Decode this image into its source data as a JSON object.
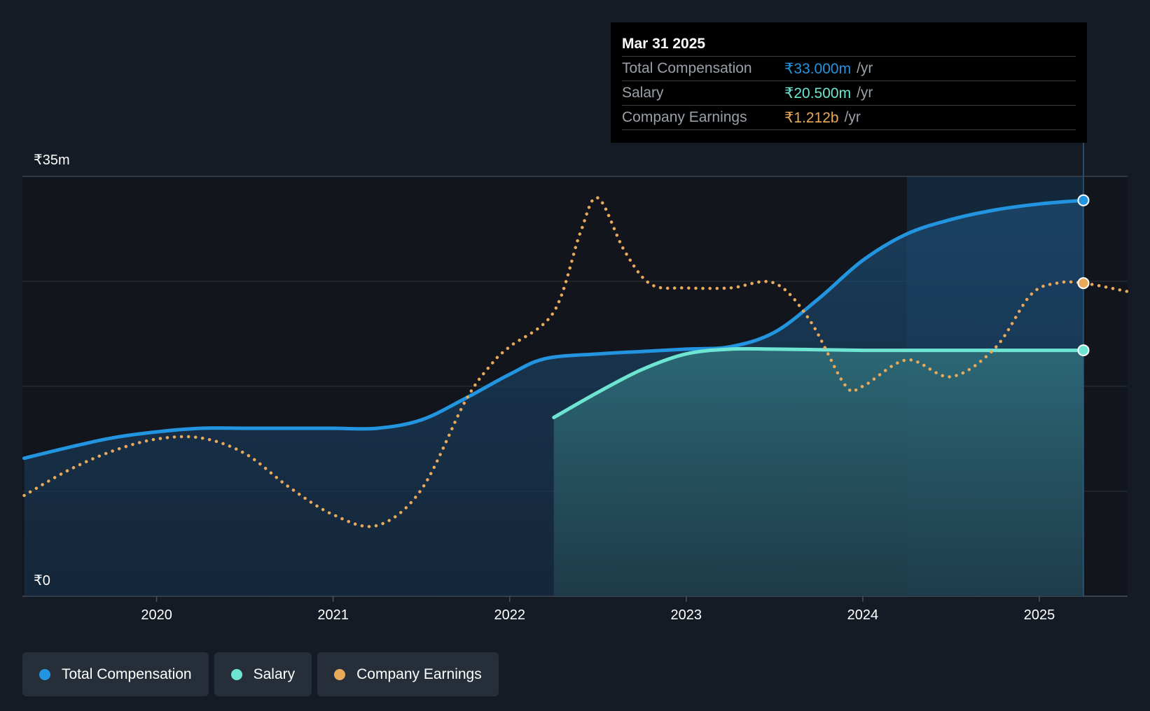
{
  "tooltip": {
    "date": "Mar 31 2025",
    "rows": [
      {
        "label": "Total Compensation",
        "value": "₹33.000m",
        "unit": "/yr",
        "color": "#2394df"
      },
      {
        "label": "Salary",
        "value": "₹20.500m",
        "unit": "/yr",
        "color": "#6ee5d2"
      },
      {
        "label": "Company Earnings",
        "value": "₹1.212b",
        "unit": "/yr",
        "color": "#e8a95b"
      }
    ]
  },
  "legend": [
    {
      "label": "Total Compensation",
      "color": "#2394df"
    },
    {
      "label": "Salary",
      "color": "#6ee5d2"
    },
    {
      "label": "Company Earnings",
      "color": "#e8a95b"
    }
  ],
  "chart_data": {
    "type": "line",
    "y_axis_labels": [
      "₹0",
      "₹35m"
    ],
    "ylim": [
      0,
      35
    ],
    "xlim": [
      2019.24,
      2025.5
    ],
    "x_ticks": [
      2020,
      2021,
      2022,
      2023,
      2024,
      2025
    ],
    "x_tick_labels": [
      "2020",
      "2021",
      "2022",
      "2023",
      "2024",
      "2025"
    ],
    "grid": true,
    "legend_position": "bottom-left",
    "series": [
      {
        "name": "Total Compensation",
        "color": "#2394df",
        "style": "solid-area",
        "x": [
          2019.25,
          2019.5,
          2019.75,
          2020.0,
          2020.25,
          2020.5,
          2020.75,
          2021.0,
          2021.25,
          2021.5,
          2021.75,
          2022.0,
          2022.2,
          2022.5,
          2022.75,
          2023.0,
          2023.25,
          2023.5,
          2023.75,
          2024.0,
          2024.25,
          2024.5,
          2024.75,
          2025.0,
          2025.25
        ],
        "y": [
          11.5,
          12.4,
          13.2,
          13.7,
          14.0,
          14.0,
          14.0,
          14.0,
          14.0,
          14.7,
          16.5,
          18.5,
          19.8,
          20.2,
          20.4,
          20.6,
          20.8,
          22.0,
          24.8,
          28.0,
          30.2,
          31.4,
          32.2,
          32.7,
          33.0
        ]
      },
      {
        "name": "Salary",
        "color": "#6ee5d2",
        "style": "solid-area",
        "x": [
          2022.25,
          2022.5,
          2022.75,
          2023.0,
          2023.25,
          2023.5,
          2023.75,
          2024.0,
          2024.25,
          2024.5,
          2024.75,
          2025.0,
          2025.25
        ],
        "y": [
          14.9,
          17.0,
          18.9,
          20.2,
          20.6,
          20.6,
          20.55,
          20.5,
          20.5,
          20.5,
          20.5,
          20.5,
          20.5
        ]
      },
      {
        "name": "Company Earnings",
        "color": "#e8a95b",
        "style": "dotted",
        "x": [
          2019.25,
          2019.5,
          2019.75,
          2020.0,
          2020.25,
          2020.5,
          2020.75,
          2021.0,
          2021.25,
          2021.5,
          2021.75,
          2021.9,
          2022.0,
          2022.25,
          2022.4,
          2022.5,
          2022.65,
          2022.8,
          2023.0,
          2023.25,
          2023.5,
          2023.7,
          2023.9,
          2024.0,
          2024.25,
          2024.5,
          2024.75,
          2024.95,
          2025.1,
          2025.25,
          2025.5
        ],
        "y": [
          8.4,
          10.5,
          12.1,
          13.1,
          13.2,
          11.9,
          9.1,
          6.8,
          5.9,
          8.9,
          16.3,
          19.4,
          20.8,
          23.7,
          30.3,
          33.2,
          28.8,
          26.0,
          25.7,
          25.7,
          26.1,
          23.0,
          17.6,
          17.5,
          19.7,
          18.3,
          20.7,
          25.1,
          26.1,
          26.1,
          25.4
        ]
      }
    ],
    "markers": [
      {
        "series": "Total Compensation",
        "x": 2025.25,
        "y": 33.0
      },
      {
        "series": "Salary",
        "x": 2025.25,
        "y": 20.5
      },
      {
        "series": "Company Earnings",
        "x": 2025.25,
        "y": 26.1
      }
    ],
    "highlight_range": [
      2024.25,
      2025.25
    ]
  }
}
